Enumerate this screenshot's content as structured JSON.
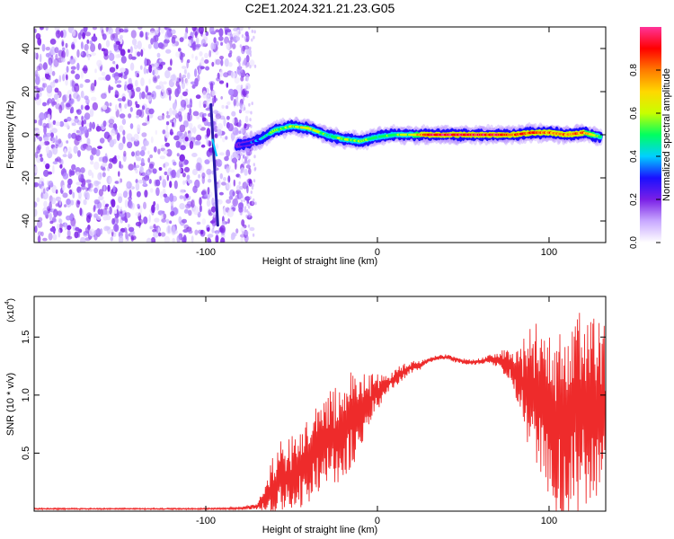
{
  "figure_title": "C2E1.2024.321.21.23.G05",
  "chart_data": [
    {
      "type": "heatmap",
      "title": "",
      "xlabel": "Height of straight line (km)",
      "ylabel": "Frequency (Hz)",
      "xlim": [
        -200,
        133
      ],
      "ylim": [
        -50,
        50
      ],
      "x_ticks": [
        -100,
        0,
        100
      ],
      "y_ticks": [
        -40,
        -20,
        0,
        20,
        40
      ],
      "grid": false,
      "colorbar": {
        "label": "Normalized spectral amplitude",
        "range": [
          0,
          1
        ],
        "ticks": [
          "0.0",
          "0.2",
          "0.4",
          "0.6",
          "0.8"
        ],
        "colormap": [
          "#ffffff",
          "#c8a8ff",
          "#7a1fe6",
          "#1a10ff",
          "#00d0ff",
          "#00ff60",
          "#c8ff00",
          "#ffd800",
          "#ff7a00",
          "#ff0000",
          "#ff3399"
        ]
      },
      "noise_region": {
        "x_range": [
          -200,
          -73
        ],
        "mean_amplitude": 0.25
      },
      "tone_track": {
        "x": [
          -82,
          -75,
          -68,
          -60,
          -50,
          -40,
          -30,
          -20,
          -10,
          0,
          10,
          20,
          30,
          40,
          50,
          60,
          70,
          80,
          90,
          100,
          110,
          120,
          130
        ],
        "frequency": [
          -5,
          -4,
          -2,
          2,
          4,
          3,
          0,
          -2,
          -3,
          -1,
          0,
          0,
          0,
          0,
          0,
          0,
          0,
          0,
          1,
          1,
          0,
          1,
          -1
        ],
        "amplitude": [
          0.25,
          0.3,
          0.4,
          0.55,
          0.6,
          0.65,
          0.5,
          0.55,
          0.55,
          0.5,
          0.55,
          0.6,
          0.95,
          1.0,
          1.0,
          0.95,
          0.9,
          0.85,
          0.85,
          0.8,
          0.8,
          0.8,
          0.55
        ]
      },
      "streak": {
        "x": [
          -97,
          -93
        ],
        "frequency": [
          14,
          -42
        ]
      }
    },
    {
      "type": "line",
      "title": "",
      "xlabel": "Height of straight line (km)",
      "ylabel": "SNR (10 * v/v)",
      "y_multiplier_label": "(x10",
      "y_multiplier_exp": "4",
      "xlim": [
        -200,
        133
      ],
      "ylim": [
        0,
        1.85
      ],
      "x_ticks": [
        -100,
        0,
        100
      ],
      "y_ticks": [
        "0.5",
        "1.0",
        "1.5"
      ],
      "grid": false,
      "series": [
        {
          "color": "#ee2b2b",
          "x": [
            -200,
            -180,
            -160,
            -140,
            -120,
            -100,
            -80,
            -70,
            -65,
            -60,
            -55,
            -50,
            -45,
            -40,
            -35,
            -30,
            -25,
            -20,
            -15,
            -10,
            -5,
            0,
            5,
            10,
            15,
            20,
            25,
            30,
            35,
            40,
            45,
            50,
            55,
            60,
            65,
            70,
            75,
            80,
            85,
            90,
            95,
            100,
            105,
            110,
            115,
            120,
            125,
            130
          ],
          "mean": [
            0.02,
            0.02,
            0.02,
            0.02,
            0.02,
            0.02,
            0.025,
            0.04,
            0.12,
            0.2,
            0.3,
            0.32,
            0.35,
            0.45,
            0.55,
            0.6,
            0.65,
            0.72,
            0.78,
            0.85,
            0.95,
            1.02,
            1.08,
            1.15,
            1.2,
            1.24,
            1.26,
            1.3,
            1.32,
            1.33,
            1.31,
            1.29,
            1.28,
            1.29,
            1.31,
            1.3,
            1.28,
            1.2,
            1.1,
            1.05,
            1.0,
            0.85,
            0.8,
            0.78,
            0.82,
            0.86,
            0.88,
            0.86
          ],
          "amplitude": [
            0.005,
            0.005,
            0.005,
            0.005,
            0.005,
            0.005,
            0.008,
            0.02,
            0.1,
            0.25,
            0.3,
            0.25,
            0.28,
            0.3,
            0.32,
            0.35,
            0.35,
            0.35,
            0.33,
            0.3,
            0.2,
            0.12,
            0.08,
            0.06,
            0.05,
            0.04,
            0.03,
            0.02,
            0.02,
            0.02,
            0.02,
            0.02,
            0.02,
            0.02,
            0.03,
            0.05,
            0.1,
            0.15,
            0.3,
            0.45,
            0.5,
            0.6,
            0.7,
            0.75,
            0.8,
            0.75,
            0.7,
            0.6
          ]
        }
      ]
    }
  ]
}
